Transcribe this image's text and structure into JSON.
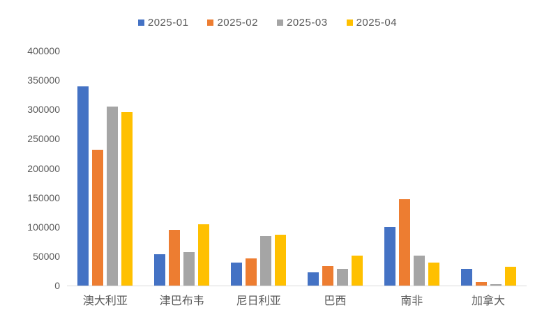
{
  "chart_data": {
    "type": "bar",
    "title": "",
    "xlabel": "",
    "ylabel": "",
    "categories": [
      "澳大利亚",
      "津巴布韦",
      "尼日利亚",
      "巴西",
      "南非",
      "加拿大"
    ],
    "series": [
      {
        "name": "2025-01",
        "color": "#4472C4",
        "values": [
          340000,
          53000,
          39000,
          23000,
          100000,
          29000
        ]
      },
      {
        "name": "2025-02",
        "color": "#ED7D31",
        "values": [
          231000,
          95000,
          46000,
          33000,
          147000,
          6000
        ]
      },
      {
        "name": "2025-03",
        "color": "#A5A5A5",
        "values": [
          305000,
          57000,
          84000,
          28000,
          51000,
          2000
        ]
      },
      {
        "name": "2025-04",
        "color": "#FFC000",
        "values": [
          296000,
          105000,
          87000,
          51000,
          39000,
          32000
        ]
      }
    ],
    "ylim": [
      0,
      400000
    ],
    "ytick_interval": 50000,
    "yticks": [
      0,
      50000,
      100000,
      150000,
      200000,
      250000,
      300000,
      350000,
      400000
    ],
    "legend_position": "top",
    "grid": false
  },
  "colors": {
    "background": "#FFFFFF",
    "axis_line": "#D9D9D9",
    "tick_text": "#595959",
    "legend_text": "#595959"
  }
}
